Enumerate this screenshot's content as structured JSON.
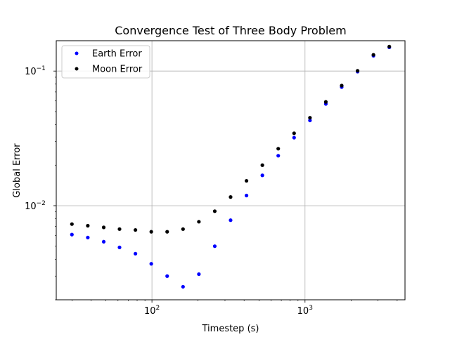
{
  "chart_data": {
    "type": "scatter",
    "title": "Convergence Test of Three Body Problem",
    "xlabel": "Timestep (s)",
    "ylabel": "Global Error",
    "xscale": "log",
    "yscale": "log",
    "xlim": [
      23.7,
      4500
    ],
    "ylim": [
      0.002,
      0.168
    ],
    "grid": "major",
    "legend_position": "top-left",
    "x_major_ticks": [
      {
        "value": 100,
        "base": "10",
        "exp": "2"
      },
      {
        "value": 1000,
        "base": "10",
        "exp": "3"
      }
    ],
    "y_major_ticks": [
      {
        "value": 0.01,
        "base": "10",
        "exp": "−2"
      },
      {
        "value": 0.1,
        "base": "10",
        "exp": "−1"
      }
    ],
    "series": [
      {
        "name": "Earth Error",
        "color": "#0000ff",
        "x": [
          30,
          38.1,
          48.4,
          61.4,
          78,
          99,
          125.7,
          159.6,
          202.6,
          257.2,
          326.5,
          414.6,
          526.4,
          668.3,
          848.5,
          1077.2,
          1367.6,
          1736.4,
          2204.5,
          2798.8,
          3553.5
        ],
        "y": [
          0.0061,
          0.0058,
          0.0054,
          0.0049,
          0.0044,
          0.0037,
          0.003,
          0.0025,
          0.0031,
          0.005,
          0.0078,
          0.0119,
          0.0168,
          0.0235,
          0.032,
          0.043,
          0.057,
          0.076,
          0.099,
          0.13,
          0.15
        ]
      },
      {
        "name": "Moon Error",
        "color": "#000000",
        "x": [
          30,
          38.1,
          48.4,
          61.4,
          78,
          99,
          125.7,
          159.6,
          202.6,
          257.2,
          326.5,
          414.6,
          526.4,
          668.3,
          848.5,
          1077.2,
          1367.6,
          1736.4,
          2204.5,
          2798.8,
          3553.5
        ],
        "y": [
          0.0073,
          0.0071,
          0.0069,
          0.0067,
          0.0066,
          0.0064,
          0.0064,
          0.0067,
          0.0076,
          0.0091,
          0.0116,
          0.0153,
          0.02,
          0.0265,
          0.0345,
          0.045,
          0.059,
          0.078,
          0.1005,
          0.132,
          0.152
        ]
      }
    ]
  }
}
